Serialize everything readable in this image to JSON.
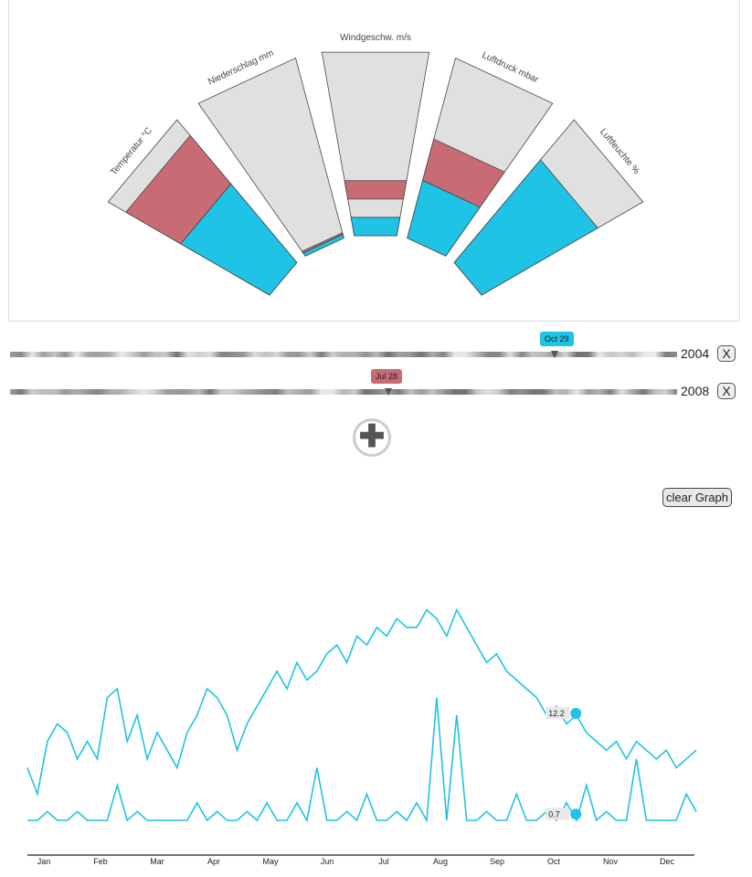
{
  "radial_chart": {
    "segments": [
      {
        "label": "Temperatur °C",
        "red": [
          0.55,
          0.89
        ],
        "blue": [
          0,
          0.55
        ]
      },
      {
        "label": "Niederschlag mm",
        "red": [
          0.02,
          0.03
        ],
        "blue": [
          0,
          0.02
        ]
      },
      {
        "label": "Windgeschw. m/s",
        "red": [
          0.2,
          0.3
        ],
        "blue": [
          0,
          0.1
        ]
      },
      {
        "label": "Luftdruck mbar",
        "red": [
          0.32,
          0.55
        ],
        "blue": [
          0,
          0.32
        ]
      },
      {
        "label": "Luftfeuchte %",
        "red": [
          0,
          0.15
        ],
        "blue": [
          0,
          0.72
        ]
      }
    ],
    "colors": {
      "red": "#c96b75",
      "blue": "#1ec3e6",
      "grey": "#e0e0e0"
    }
  },
  "sliders": [
    {
      "year": "2004",
      "date_tag": "Oct 29",
      "tag_color": "blue",
      "position": 0.82,
      "remove_label": "X"
    },
    {
      "year": "2008",
      "date_tag": "Jul 28",
      "tag_color": "red",
      "position": 0.57,
      "remove_label": "X"
    }
  ],
  "add_button": {
    "label": "✚"
  },
  "clear_button": {
    "label": "clear Graph"
  },
  "chart_data": {
    "type": "line",
    "x_ticks": [
      "Jan",
      "Feb",
      "Mar",
      "Apr",
      "May",
      "Jun",
      "Jul",
      "Aug",
      "Sep",
      "Oct",
      "Nov",
      "Dec"
    ],
    "series": [
      {
        "values": [
          6,
          3,
          9,
          11,
          10,
          7,
          9,
          7,
          14,
          15,
          9,
          12,
          7,
          10,
          8,
          6,
          10,
          12,
          15,
          14,
          12,
          8,
          11,
          13,
          15,
          17,
          15,
          18,
          16,
          17,
          19,
          20,
          18,
          21,
          20,
          22,
          21,
          23,
          22,
          22,
          24,
          23,
          21,
          24,
          22,
          20,
          18,
          19,
          17,
          16,
          15,
          14,
          12,
          13,
          11,
          12,
          10,
          9,
          8,
          9,
          7,
          9,
          8,
          7,
          8,
          6,
          7,
          8
        ]
      },
      {
        "values": [
          0,
          0,
          1,
          0,
          0,
          1,
          0,
          0,
          0,
          4,
          0,
          1,
          0,
          0,
          0,
          0,
          0,
          2,
          0,
          1,
          0,
          0,
          1,
          0,
          2,
          0,
          0,
          2,
          0,
          6,
          0,
          0,
          1,
          0,
          3,
          0,
          0,
          1,
          0,
          2,
          0,
          14,
          0,
          12,
          0,
          0,
          1,
          0,
          0,
          3,
          0,
          0,
          1,
          0,
          2,
          0,
          4,
          0,
          1,
          0,
          0,
          7,
          0,
          0,
          0,
          0,
          3,
          1
        ]
      }
    ],
    "highlight_values": [
      "12.2",
      "0.7"
    ],
    "ylim": [
      0,
      25
    ],
    "color": "#1ec3e6"
  }
}
